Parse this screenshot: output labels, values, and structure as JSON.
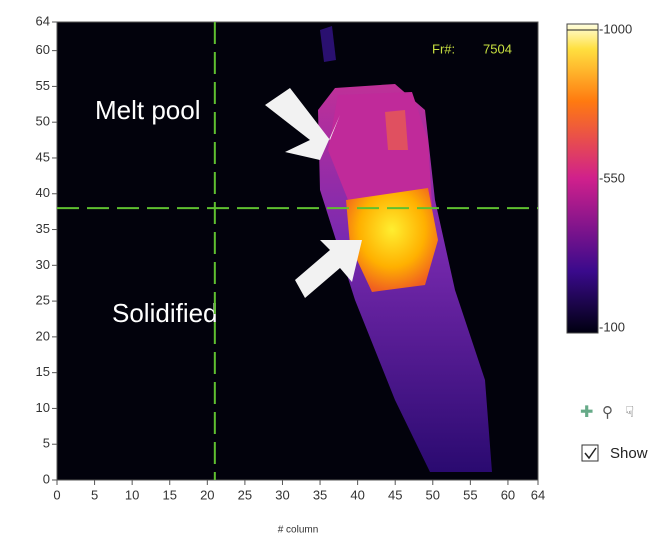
{
  "image_view": {
    "x_axis": {
      "label": "# column",
      "range": [
        0,
        64
      ],
      "ticks": [
        0,
        5,
        10,
        15,
        20,
        25,
        30,
        35,
        40,
        45,
        50,
        55,
        60,
        64
      ]
    },
    "y_axis": {
      "range": [
        0,
        64
      ],
      "ticks": [
        0,
        5,
        10,
        15,
        20,
        25,
        30,
        35,
        40,
        45,
        50,
        55,
        60,
        64
      ]
    },
    "cursor": {
      "x": 21,
      "y": 38
    },
    "frame_label": "Fr#:",
    "frame_number": "7504",
    "annotations": [
      "Melt pool",
      "Solidified"
    ],
    "colorbar": {
      "range": [
        100,
        1000
      ],
      "ticks": [
        {
          "value": 1000,
          "label": "-1000"
        },
        {
          "value": 550,
          "label": "-550"
        },
        {
          "value": 100,
          "label": "-100"
        }
      ]
    }
  },
  "controls": {
    "show_checkbox": "Show"
  }
}
